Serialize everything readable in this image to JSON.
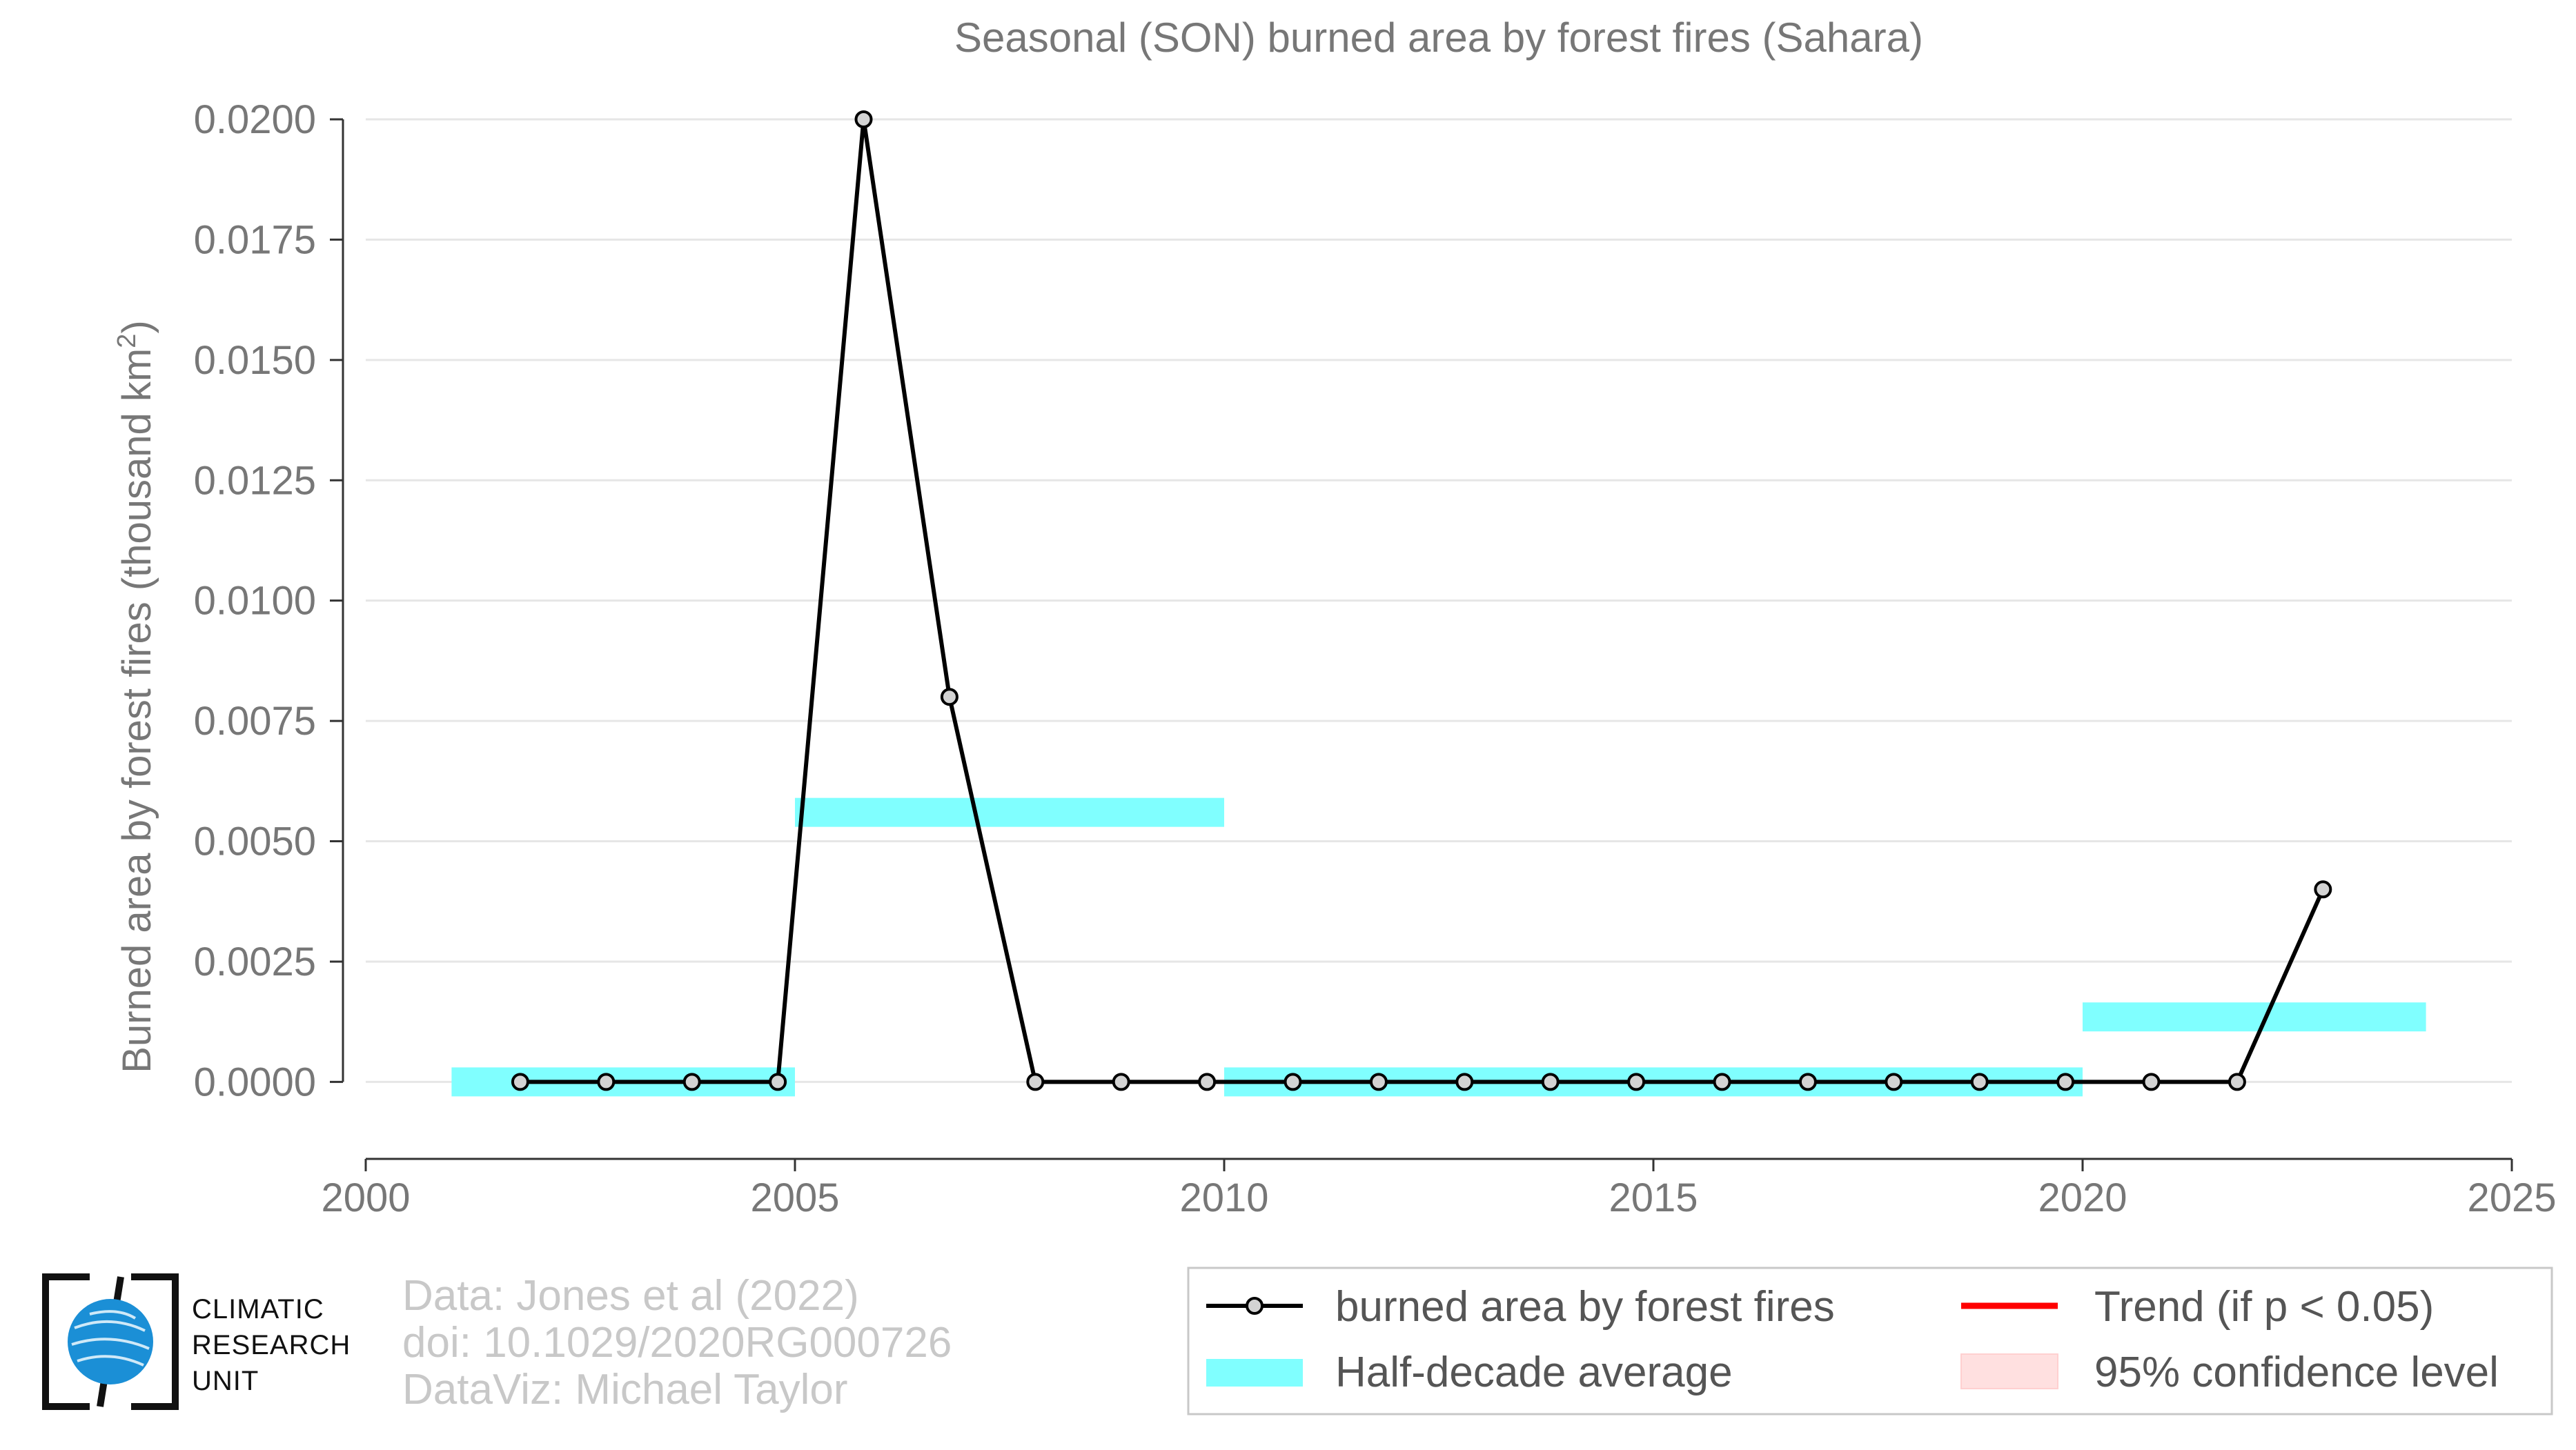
{
  "chart_data": {
    "type": "line",
    "title": "Seasonal (SON) burned area by forest fires (Sahara)",
    "ylabel": "Burned area by forest fires (thousand km²)",
    "xlabel": "",
    "xlim": [
      2000,
      2025
    ],
    "ylim": [
      -0.0016,
      0.02
    ],
    "xticks": [
      "2000",
      "2005",
      "2010",
      "2015",
      "2020",
      "2025"
    ],
    "yticks": [
      "0.0000",
      "0.0025",
      "0.0050",
      "0.0075",
      "0.0100",
      "0.0125",
      "0.0150",
      "0.0175",
      "0.0200"
    ],
    "grid": true,
    "series": [
      {
        "name": "burned area by forest fires",
        "x": [
          2001.8,
          2002.8,
          2003.8,
          2004.8,
          2005.8,
          2006.8,
          2007.8,
          2008.8,
          2009.8,
          2010.8,
          2011.8,
          2012.8,
          2013.8,
          2014.8,
          2015.8,
          2016.8,
          2017.8,
          2018.8,
          2019.8,
          2020.8,
          2021.8,
          2022.8
        ],
        "values": [
          0.0,
          0.0,
          0.0,
          0.0,
          0.02,
          0.008,
          0.0,
          0.0,
          0.0,
          0.0,
          0.0,
          0.0,
          0.0,
          0.0,
          0.0,
          0.0,
          0.0,
          0.0,
          0.0,
          0.0,
          0.0,
          0.004
        ],
        "color": "#000000"
      }
    ],
    "half_decade_average": {
      "name": "Half-decade average",
      "color": "#80ffff",
      "segments": [
        {
          "x0": 2001,
          "x1": 2005,
          "value": 0.0
        },
        {
          "x0": 2005,
          "x1": 2010,
          "value": 0.0056
        },
        {
          "x0": 2010,
          "x1": 2020,
          "value": 0.0
        },
        {
          "x0": 2020,
          "x1": 2024,
          "value": 0.00135
        }
      ]
    },
    "legend": {
      "placement": "bottom-right",
      "entries": [
        {
          "label": "burned area by forest fires",
          "kind": "line-marker",
          "color": "#000000"
        },
        {
          "label": "Trend (if p < 0.05)",
          "kind": "line",
          "color": "#ff0000"
        },
        {
          "label": "Half-decade average",
          "kind": "band",
          "color": "#80ffff"
        },
        {
          "label": "95% confidence level",
          "kind": "band",
          "color": "#ffe0e0"
        }
      ]
    }
  },
  "credits": {
    "line1": "Data: Jones et al (2022)",
    "line2": "doi: 10.1029/2020RG000726",
    "line3": "DataViz: Michael Taylor"
  },
  "logo": {
    "line1": "CLIMATIC",
    "line2": "RESEARCH",
    "line3": "UNIT",
    "color": "#1b8fd6"
  }
}
